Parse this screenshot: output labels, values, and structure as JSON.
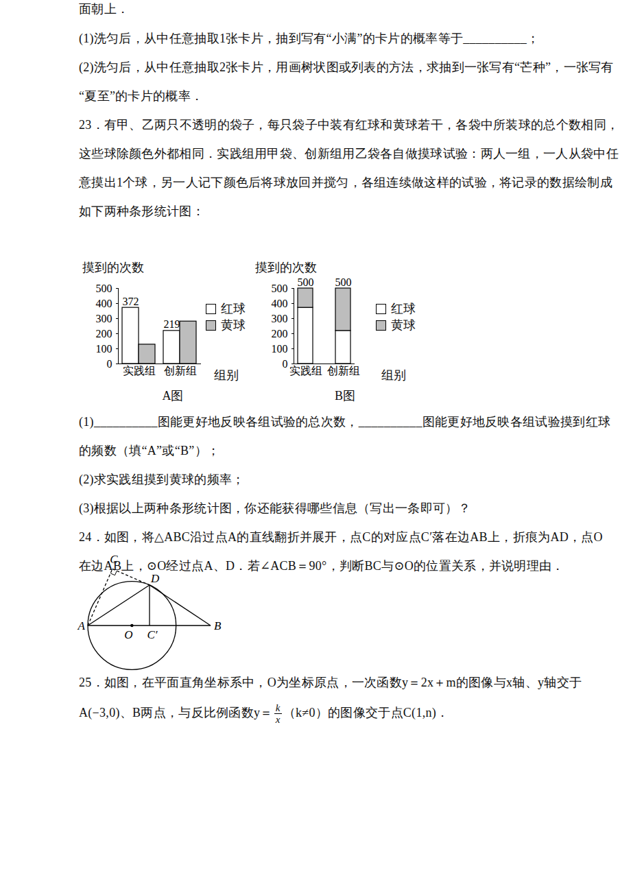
{
  "document": {
    "lines_before": [
      "面朝上．",
      "(1)洗匀后，从中任意抽取1张卡片，抽到写有“小满”的卡片的概率等于__________；",
      "(2)洗匀后，从中任意抽取2张卡片，用画树状图或列表的方法，求抽到一张写有“芒种”，一张写有",
      "“夏至”的卡片的概率．",
      "23．有甲、乙两只不透明的袋子，每只袋子中装有红球和黄球若干，各袋中所装球的总个数相同，",
      "这些球除颜色外都相同．实践组用甲袋、创新组用乙袋各自做摸球试验：两人一组，一人从袋中任",
      "意摸出1个球，另一人记下颜色后将球放回并搅匀，各组连续做这样的试验，将记录的数据绘制成",
      "如下两种条形统计图："
    ],
    "lines_after": [
      "(1)__________图能更好地反映各组试验的总次数，__________图能更好地反映各组试验摸到红球",
      "的频数（填“A”或“B”）；",
      "(2)求实践组摸到黄球的频率；",
      "(3)根据以上两种条形统计图，你还能获得哪些信息（写出一条即可）？",
      "24．如图，将△ABC沿过点A的直线翻折并展开，点C的对应点C′落在边AB上，折痕为AD，点O",
      "在边AB上，⊙O经过点A、D．若∠ACB＝90°，判断BC与⊙O的位置关系，并说明理由．"
    ],
    "figure_labels": [
      "C",
      "D",
      "A",
      "O",
      "C′",
      "B"
    ],
    "lines_end": [
      [
        "25．如图，在平面直角坐标系中，O为坐标原点，一次函数y＝2x＋m的图像与x轴、y轴交于"
      ],
      [
        "A(−3,0)、B两点，与反比例函数y＝",
        {
          "numerator": "k",
          "denominator": "x"
        },
        "（k≠0）的图像交于点C(1,n)．"
      ]
    ]
  },
  "chart_data": [
    {
      "type": "bar",
      "caption": "A图",
      "y_label": "摸到的次数",
      "x_label": "组别",
      "categories": [
        "实践组",
        "创新组"
      ],
      "series": [
        {
          "name": "红球",
          "color": "#ffffff",
          "values": [
            372,
            219
          ],
          "data_labels": true
        },
        {
          "name": "黄球",
          "color": "#bdbdbd",
          "values": [
            128,
            281
          ],
          "data_labels": false
        }
      ],
      "ylim": [
        0,
        500
      ],
      "yticks": [
        0,
        100,
        200,
        300,
        400,
        500
      ],
      "legend": "right",
      "stacked": false
    },
    {
      "type": "bar",
      "caption": "B图",
      "y_label": "摸到的次数",
      "x_label": "组别",
      "categories": [
        "实践组",
        "创新组"
      ],
      "series": [
        {
          "name": "红球",
          "color": "#ffffff",
          "values": [
            372,
            219
          ],
          "data_labels": false
        },
        {
          "name": "黄球",
          "color": "#bdbdbd",
          "values": [
            128,
            281
          ],
          "data_labels": false
        }
      ],
      "totals": [
        500,
        500
      ],
      "ylim": [
        0,
        500
      ],
      "yticks": [
        0,
        100,
        200,
        300,
        400,
        500
      ],
      "legend": "right",
      "stacked": true
    }
  ]
}
